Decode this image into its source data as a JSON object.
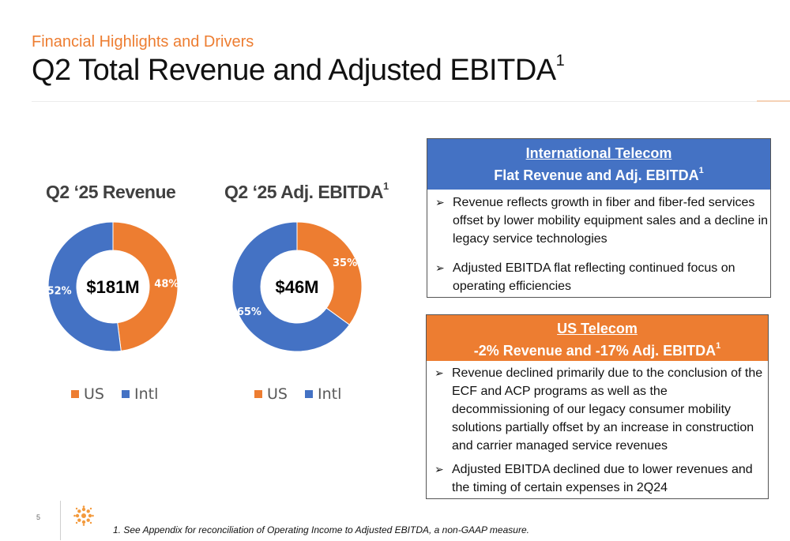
{
  "header": {
    "subtitle": "Financial Highlights and Drivers",
    "title": "Q2 Total Revenue and Adjusted EBITDA",
    "title_sup": "1"
  },
  "colors": {
    "orange": "#ED7D31",
    "blue": "#4472C4"
  },
  "legend": {
    "us_label": "US",
    "intl_label": "Intl"
  },
  "chart_data": [
    {
      "type": "pie",
      "title": "Q2 ‘25 Revenue",
      "center_label": "$181M",
      "series": [
        {
          "name": "US",
          "value": 48,
          "label": "48%",
          "color": "#ED7D31"
        },
        {
          "name": "Intl",
          "value": 52,
          "label": "52%",
          "color": "#4472C4"
        }
      ]
    },
    {
      "type": "pie",
      "title": "Q2 ‘25 Adj. EBITDA",
      "title_sup": "1",
      "center_label": "$46M",
      "series": [
        {
          "name": "US",
          "value": 35,
          "label": "35%",
          "color": "#ED7D31"
        },
        {
          "name": "Intl",
          "value": 65,
          "label": "65%",
          "color": "#4472C4"
        }
      ]
    }
  ],
  "intl_box": {
    "heading1": "International Telecom",
    "heading2": "Flat Revenue  and  Adj. EBITDA",
    "heading2_sup": "1",
    "bullets": [
      "Revenue reflects growth in fiber and fiber-fed services offset by lower mobility equipment sales and a decline in legacy service technologies",
      "Adjusted EBITDA flat reflecting continued focus on operating efficiencies"
    ]
  },
  "us_box": {
    "heading1": "US Telecom",
    "heading2": "-2% Revenue and -17% Adj. EBITDA",
    "heading2_sup": "1",
    "bullets": [
      "Revenue declined primarily due to the conclusion of the ECF and ACP programs as well as the  decommissioning of our legacy consumer mobility solutions partially offset by an increase in construction and carrier managed service revenues",
      "Adjusted EBITDA declined due to lower revenues and the timing of certain expenses in 2Q24"
    ]
  },
  "footer": {
    "page_number": "5",
    "footnote": "1. See Appendix for reconciliation of Operating Income to Adjusted EBITDA, a non-GAAP measure.",
    "bullet_arrow": "➢"
  }
}
